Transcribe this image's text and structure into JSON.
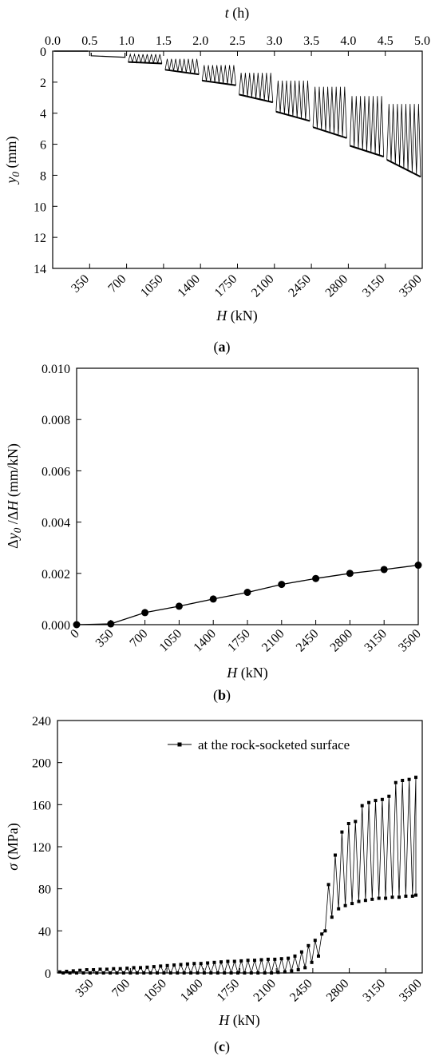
{
  "chart_data": [
    {
      "type": "line",
      "panel_label": "a",
      "xlabel_var": "H",
      "xlabel_unit": " (kN)",
      "x_ticks": [
        "350",
        "700",
        "1050",
        "1400",
        "1750",
        "2100",
        "2450",
        "2800",
        "3150",
        "3500"
      ],
      "x2label_var": "t",
      "x2label_unit": " (h)",
      "x2_ticks": [
        "0.0",
        "0.5",
        "1.0",
        "1.5",
        "2.0",
        "2.5",
        "3.0",
        "3.5",
        "4.0",
        "4.5",
        "5.0"
      ],
      "x2lim": [
        0,
        5
      ],
      "ylabel_var": "y",
      "ylabel_sub": "0",
      "ylabel_unit": " (mm)",
      "ylim": [
        0,
        14
      ],
      "y_inverted": true,
      "y_ticks": [
        "0",
        "2",
        "4",
        "6",
        "8",
        "10",
        "12",
        "14"
      ],
      "series": [
        {
          "values_by_load": [
            {
              "H": 350,
              "upper": 0.0,
              "lower_start": 0.05,
              "lower_end": 0.1
            },
            {
              "H": 700,
              "upper": 0.1,
              "lower_start": 0.3,
              "lower_end": 0.4
            },
            {
              "H": 1050,
              "upper": 0.2,
              "lower_start": 0.7,
              "lower_end": 0.8
            },
            {
              "H": 1400,
              "upper": 0.5,
              "lower_start": 1.2,
              "lower_end": 1.5
            },
            {
              "H": 1750,
              "upper": 0.9,
              "lower_start": 1.9,
              "lower_end": 2.2
            },
            {
              "H": 2100,
              "upper": 1.4,
              "lower_start": 2.8,
              "lower_end": 3.3
            },
            {
              "H": 2450,
              "upper": 1.9,
              "lower_start": 3.9,
              "lower_end": 4.5
            },
            {
              "H": 2800,
              "upper": 2.3,
              "lower_start": 4.9,
              "lower_end": 5.6
            },
            {
              "H": 3150,
              "upper": 2.9,
              "lower_start": 6.1,
              "lower_end": 6.8
            },
            {
              "H": 3500,
              "upper": 3.4,
              "lower_start": 7.0,
              "lower_end": 8.1
            }
          ]
        }
      ]
    },
    {
      "type": "line",
      "panel_label": "b",
      "xlabel_var": "H",
      "xlabel_unit": " (kN)",
      "x_ticks": [
        "0",
        "350",
        "700",
        "1050",
        "1400",
        "1750",
        "2100",
        "2450",
        "2800",
        "3150",
        "3500"
      ],
      "xlim": [
        0,
        3500
      ],
      "ylabel_pre": "Δ",
      "ylabel_var1": "y",
      "ylabel_sub": "0",
      "ylabel_mid": " /Δ",
      "ylabel_var2": "H",
      "ylabel_unit": " (mm/kN)",
      "ylim": [
        0,
        0.01
      ],
      "y_ticks": [
        "0.000",
        "0.002",
        "0.004",
        "0.006",
        "0.008",
        "0.010"
      ],
      "series": [
        {
          "x": [
            0,
            350,
            700,
            1050,
            1400,
            1750,
            2100,
            2450,
            2800,
            3150,
            3500
          ],
          "values": [
            0.0,
            3e-05,
            0.00047,
            0.00072,
            0.001,
            0.00126,
            0.00157,
            0.0018,
            0.002,
            0.00215,
            0.00232
          ]
        }
      ]
    },
    {
      "type": "line",
      "panel_label": "c",
      "xlabel_var": "H",
      "xlabel_unit": " (kN)",
      "x_ticks": [
        "350",
        "700",
        "1050",
        "1400",
        "1750",
        "2100",
        "2450",
        "2800",
        "3150",
        "3500"
      ],
      "ylabel_var": "σ",
      "ylabel_unit": " (MPa)",
      "ylim": [
        0,
        240
      ],
      "y_ticks": [
        "0",
        "40",
        "80",
        "120",
        "160",
        "200",
        "240"
      ],
      "series": [
        {
          "name": "at the rock-socketed surface",
          "peaks": [
            1,
            1.5,
            2,
            2.5,
            3,
            3,
            3.5,
            3.5,
            4,
            4,
            4.5,
            5,
            5,
            5.5,
            6,
            6.5,
            7,
            7.5,
            8,
            8.5,
            9,
            9,
            9.5,
            10,
            10.5,
            11,
            11,
            11.5,
            12,
            12,
            12.5,
            13,
            13,
            13.5,
            14,
            16,
            20,
            26,
            31,
            37,
            84,
            112,
            134,
            142,
            144,
            159,
            162,
            164,
            165,
            168,
            181,
            183,
            184,
            186
          ],
          "troughs": [
            0,
            0,
            0,
            0,
            0,
            0,
            0,
            0,
            0,
            0,
            0,
            0,
            0,
            0,
            0,
            0,
            0,
            0,
            0,
            0,
            0,
            0,
            0,
            0,
            0,
            0,
            0,
            0,
            0,
            0,
            0,
            0,
            0.5,
            1,
            2,
            3,
            5,
            10,
            16,
            40,
            53,
            61,
            64,
            66,
            68,
            69,
            70,
            71,
            71,
            72,
            72,
            73,
            73,
            74
          ]
        }
      ]
    }
  ]
}
